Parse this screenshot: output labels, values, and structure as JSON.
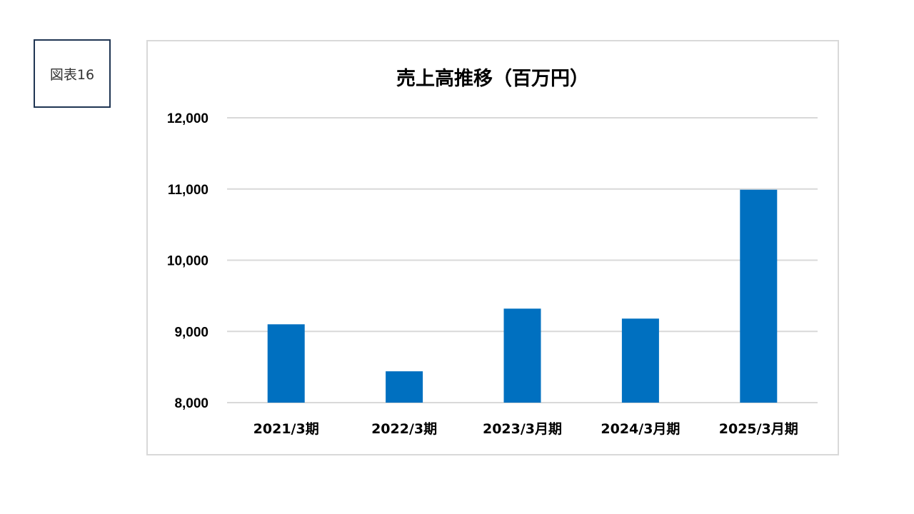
{
  "figure_label": "図表16",
  "colors": {
    "bar": "#0070C0",
    "grid": "#d9d9d9",
    "frame_border": "#d9d9d9",
    "label_border": "#1f3553"
  },
  "chart_data": {
    "type": "bar",
    "title": "売上高推移（百万円）",
    "categories": [
      "2021/3期",
      "2022/3期",
      "2023/3月期",
      "2024/3月期",
      "2025/3月期"
    ],
    "values": [
      9100,
      8440,
      9320,
      9180,
      10990
    ],
    "ylim": [
      8000,
      12000
    ],
    "yticks": [
      8000,
      9000,
      10000,
      11000,
      12000
    ],
    "ytick_labels": [
      "8,000",
      "9,000",
      "10,000",
      "11,000",
      "12,000"
    ],
    "grid": true,
    "legend": "none"
  }
}
